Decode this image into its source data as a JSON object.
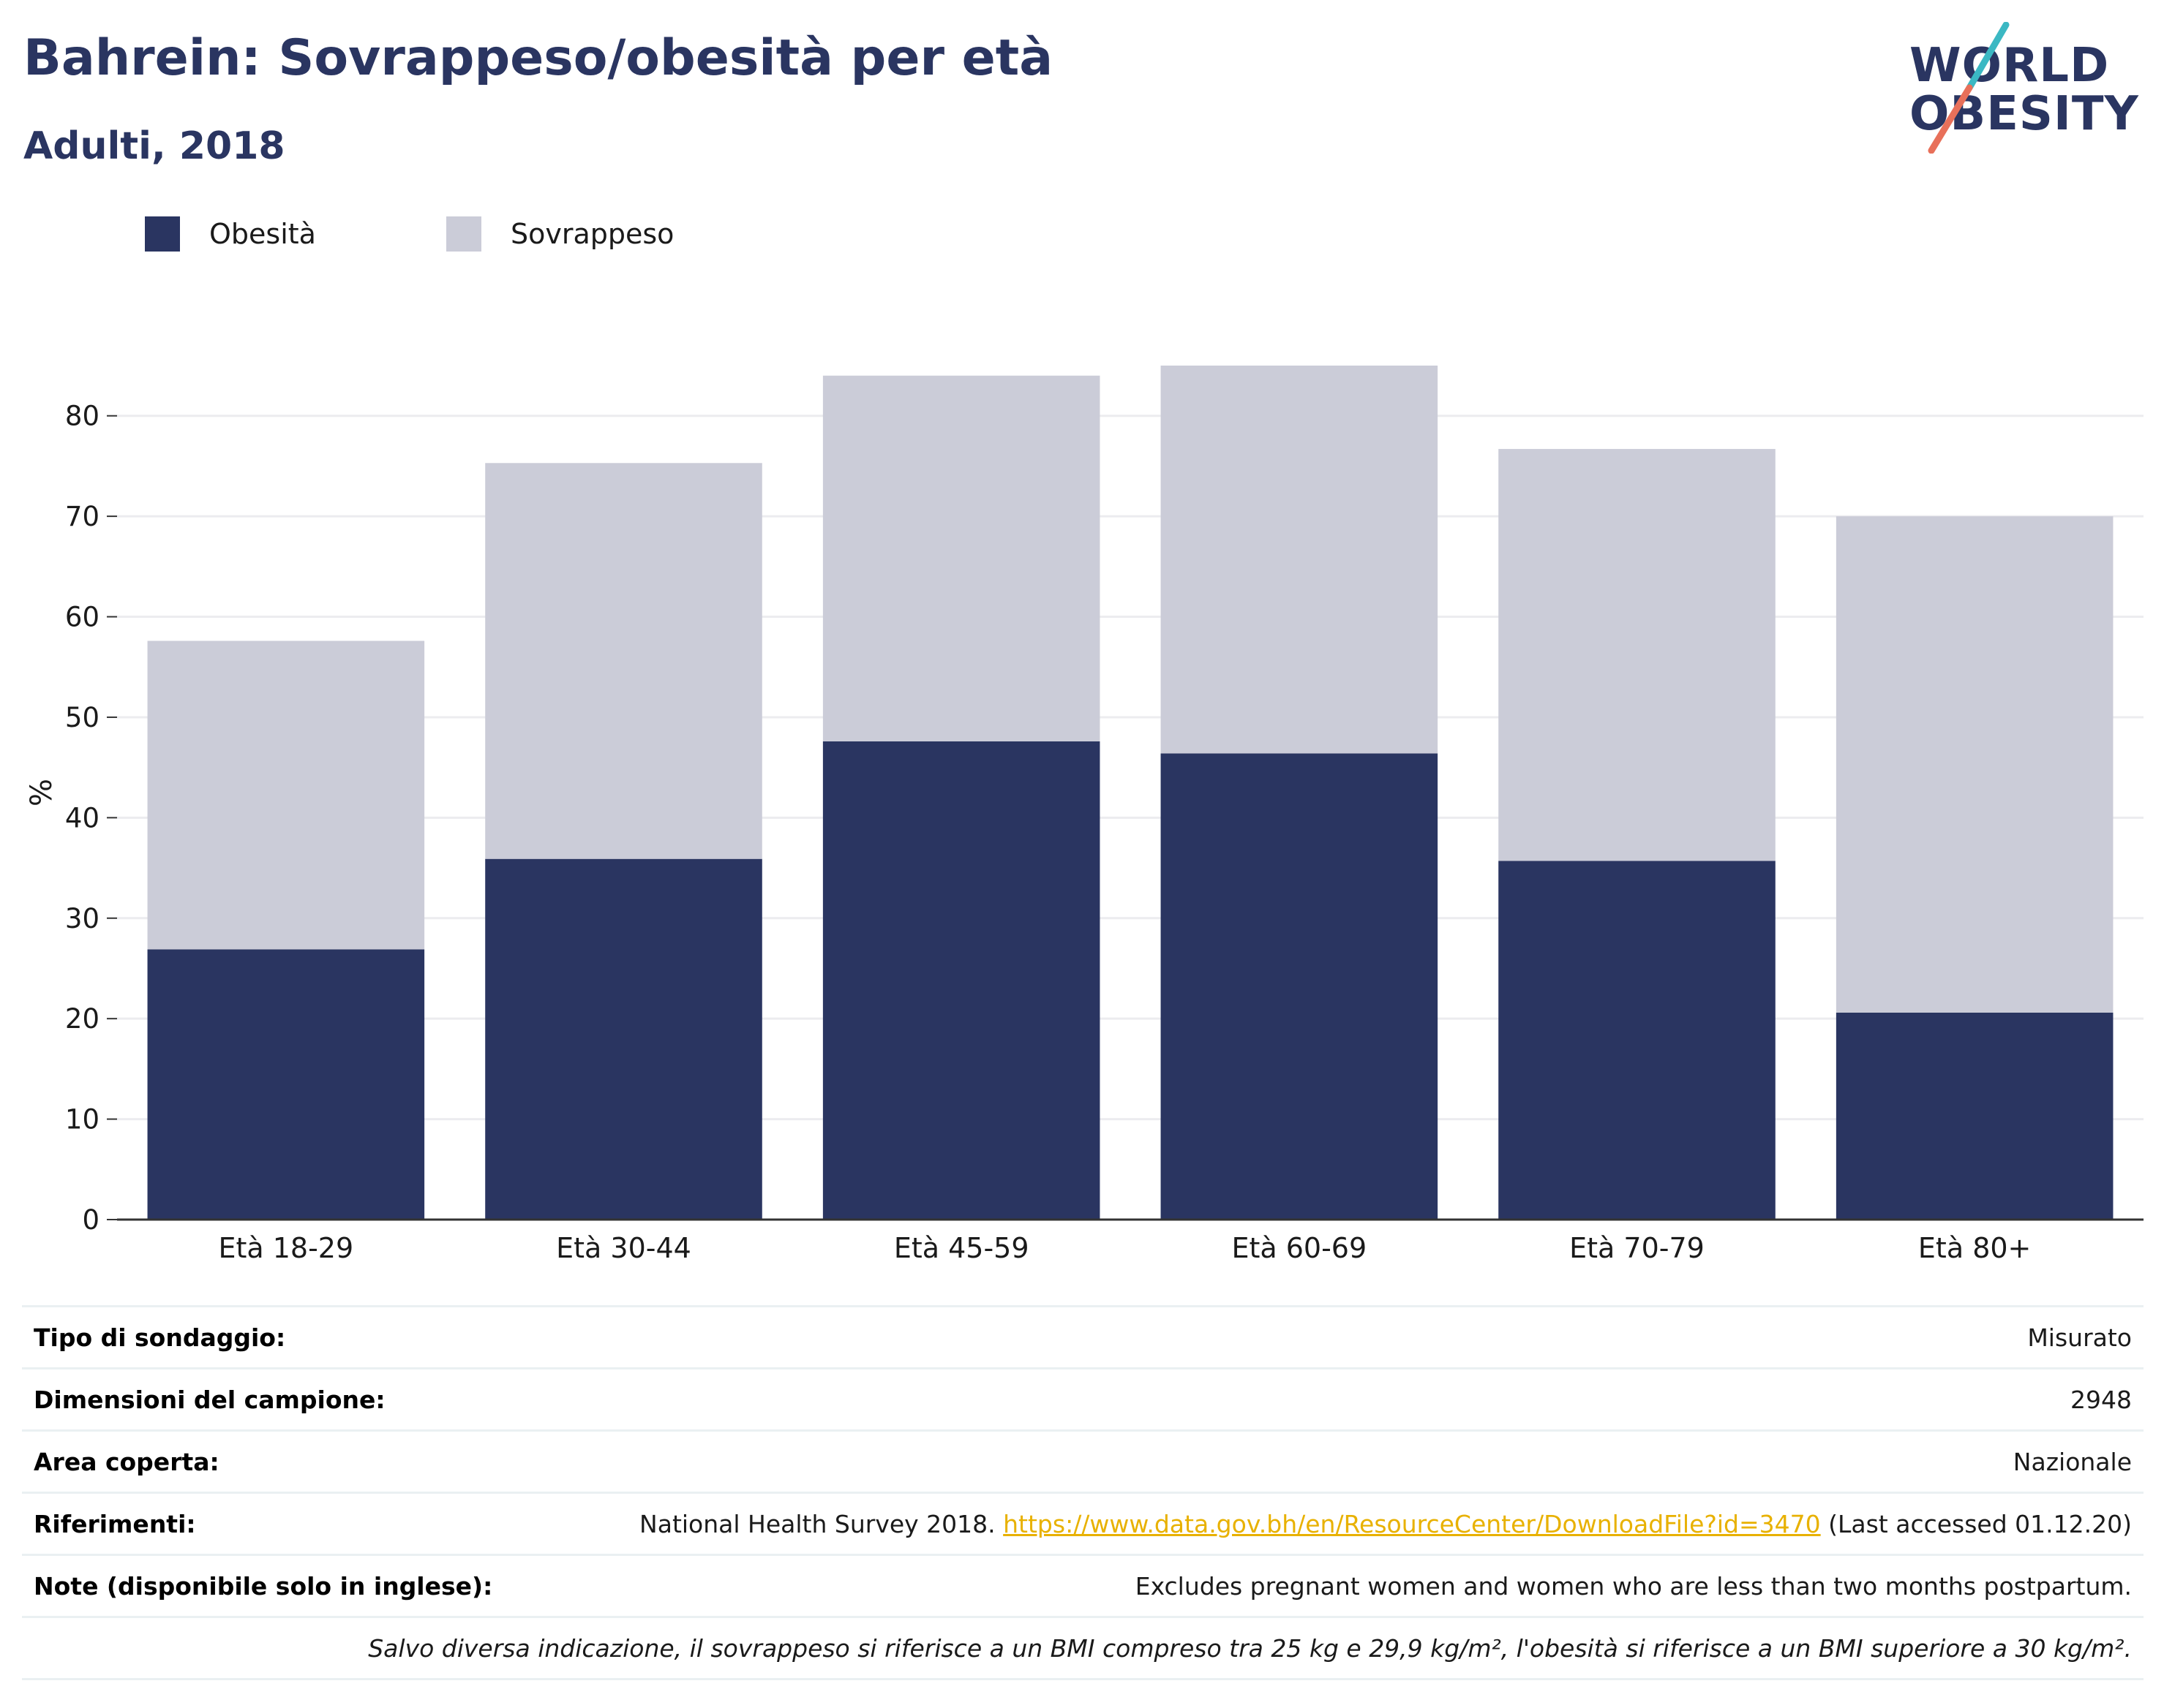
{
  "header": {
    "title": "Bahrein: Sovrappeso/obesità per età",
    "subtitle": "Adulti, 2018"
  },
  "logo": {
    "line1": "WORLD",
    "line2": "OBESITY",
    "colors": {
      "text": "#2a3561",
      "slash_top": "#3bb8c3",
      "slash_bottom": "#e8705a"
    }
  },
  "colors": {
    "obesity": "#2a3561",
    "overweight": "#cbccd8",
    "grid": "#ececef",
    "axis": "#333333"
  },
  "legend": {
    "items": [
      {
        "label": "Obesità",
        "color": "#2a3561"
      },
      {
        "label": "Sovrappeso",
        "color": "#cbccd8"
      }
    ]
  },
  "chart_data": {
    "type": "bar",
    "stacked": true,
    "categories": [
      "Età 18-29",
      "Età 30-44",
      "Età 45-59",
      "Età 60-69",
      "Età 70-79",
      "Età 80+"
    ],
    "series": [
      {
        "name": "Obesità",
        "values": [
          26.9,
          35.9,
          47.6,
          46.4,
          35.7,
          20.6
        ]
      },
      {
        "name": "Sovrappeso",
        "values": [
          30.7,
          39.4,
          36.4,
          38.6,
          41.0,
          49.4
        ]
      }
    ],
    "totals": [
      57.6,
      75.3,
      84.0,
      85.0,
      76.7,
      70.0
    ],
    "ylabel": "%",
    "ylim": [
      0,
      85
    ],
    "yticks": [
      0,
      10,
      20,
      30,
      40,
      50,
      60,
      70,
      80
    ],
    "grid": true,
    "legend_position": "top-left"
  },
  "info": {
    "rows": [
      {
        "label": "Tipo di sondaggio:",
        "value": "Misurato"
      },
      {
        "label": "Dimensioni del campione:",
        "value": "2948"
      },
      {
        "label": "Area coperta:",
        "value": "Nazionale"
      },
      {
        "label": "Riferimenti:",
        "value_prefix": "National Health Survey 2018. ",
        "link_text": "https://www.data.gov.bh/en/ResourceCenter/DownloadFile?id=3470",
        "value_suffix": " (Last accessed 01.12.20)"
      },
      {
        "label": "Note (disponibile solo in inglese):",
        "value": "Excludes pregnant women and women who are less than two months postpartum."
      }
    ],
    "footnote": "Salvo diversa indicazione, il sovrappeso si riferisce a un BMI compreso tra 25 kg e 29,9 kg/m², l'obesità si riferisce a un BMI superiore a 30 kg/m²."
  }
}
